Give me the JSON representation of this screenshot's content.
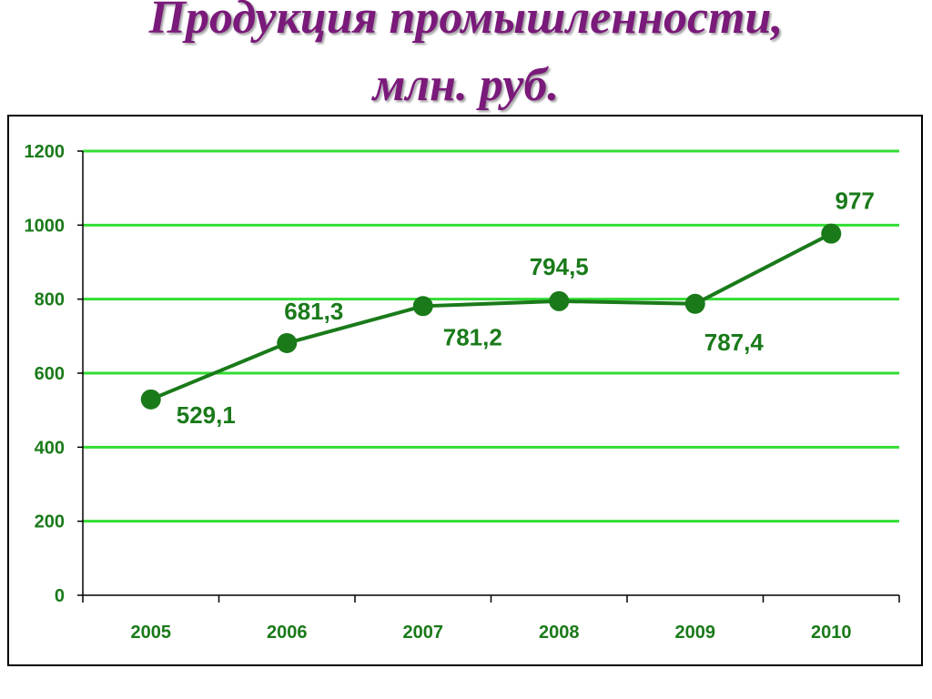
{
  "title_line1": "Продукция промышленности,",
  "title_line2": "млн. руб.",
  "colors": {
    "title": "#7a1a7a",
    "line": "#1a7a1a",
    "grid": "#33dd33",
    "label": "#1a7a1a"
  },
  "chart_data": {
    "type": "line",
    "categories": [
      "2005",
      "2006",
      "2007",
      "2008",
      "2009",
      "2010"
    ],
    "values": [
      529.1,
      681.3,
      781.2,
      794.5,
      787.4,
      977
    ],
    "data_labels": [
      "529,1",
      "681,3",
      "781,2",
      "794,5",
      "787,4",
      "977"
    ],
    "ylim": [
      0,
      1200
    ],
    "yticks": [
      0,
      200,
      400,
      600,
      800,
      1000,
      1200
    ],
    "grid": true,
    "legend": "none"
  }
}
